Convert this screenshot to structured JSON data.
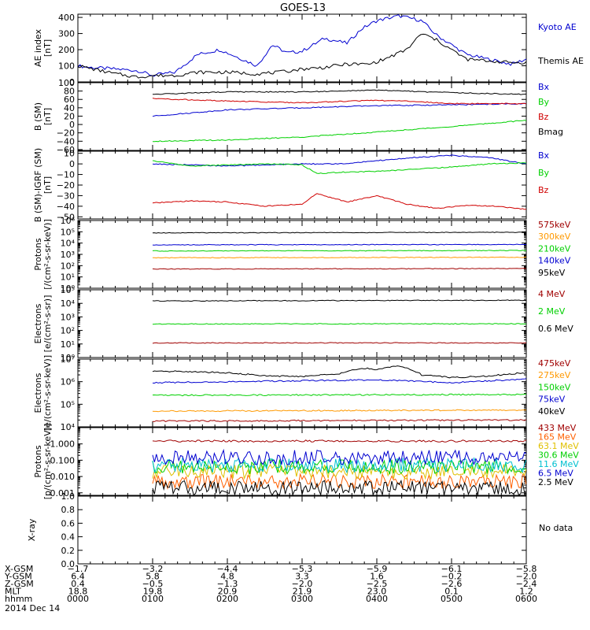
{
  "title": "GOES-13",
  "date": "2014 Dec 14",
  "no_data_text": "No data",
  "chart_data": [
    {
      "id": "ae",
      "type": "line",
      "ylabel": [
        "AE index",
        "[nT]"
      ],
      "ylim": [
        0,
        420
      ],
      "yticks": [
        0,
        100,
        200,
        300,
        400
      ],
      "log": false,
      "series": [
        {
          "name": "Kyoto AE",
          "color": "#0000d0",
          "x": [
            0,
            0.15,
            0.5,
            0.8,
            1.0,
            1.3,
            1.6,
            1.9,
            2.2,
            2.4,
            2.6,
            2.8,
            3.0,
            3.3,
            3.6,
            3.8,
            4.0,
            4.3,
            4.6,
            4.8,
            5.0,
            5.2,
            5.5,
            5.8,
            6.0
          ],
          "y": [
            100,
            90,
            80,
            70,
            40,
            60,
            170,
            200,
            140,
            100,
            230,
            180,
            190,
            270,
            240,
            330,
            380,
            410,
            380,
            290,
            230,
            170,
            140,
            110,
            140
          ]
        },
        {
          "name": "Themis AE",
          "color": "#000000",
          "x": [
            0,
            0.2,
            0.5,
            0.8,
            1.0,
            1.3,
            1.6,
            2.0,
            2.4,
            2.7,
            3.0,
            3.3,
            3.6,
            3.9,
            4.1,
            4.4,
            4.6,
            4.8,
            5.0,
            5.2,
            5.5,
            5.8,
            6.0
          ],
          "y": [
            100,
            80,
            50,
            30,
            40,
            40,
            60,
            60,
            50,
            60,
            80,
            90,
            110,
            110,
            140,
            200,
            300,
            260,
            200,
            140,
            130,
            120,
            120
          ]
        }
      ]
    },
    {
      "id": "bsm",
      "type": "line",
      "ylabel": [
        "B (SM)",
        "[nT]"
      ],
      "ylim": [
        -62,
        100
      ],
      "yticks": [
        -60,
        -40,
        -20,
        0,
        20,
        40,
        60,
        80,
        100
      ],
      "log": false,
      "series": [
        {
          "name": "Bx",
          "color": "#0000d0",
          "x": [
            1.0,
            2.0,
            3.0,
            4.0,
            5.0,
            6.0
          ],
          "y": [
            20,
            35,
            40,
            45,
            47,
            50
          ]
        },
        {
          "name": "By",
          "color": "#00d000",
          "x": [
            1.0,
            2.0,
            3.0,
            4.0,
            5.0,
            6.0
          ],
          "y": [
            -40,
            -37,
            -30,
            -18,
            -5,
            10
          ]
        },
        {
          "name": "Bz",
          "color": "#d00000",
          "x": [
            1.0,
            2.0,
            3.0,
            4.0,
            4.5,
            5.0,
            6.0
          ],
          "y": [
            62,
            56,
            52,
            58,
            55,
            50,
            50
          ]
        },
        {
          "name": "Bmag",
          "color": "#000000",
          "x": [
            1.0,
            2.0,
            3.0,
            4.0,
            5.0,
            6.0
          ],
          "y": [
            72,
            78,
            78,
            82,
            76,
            72
          ]
        }
      ]
    },
    {
      "id": "bigrf",
      "type": "line",
      "ylabel": [
        "B (SM)-IGRF (SM)",
        "[nT]"
      ],
      "ylim": [
        -52,
        12
      ],
      "yticks": [
        -50,
        -40,
        -30,
        -20,
        -10,
        0,
        10
      ],
      "log": false,
      "series": [
        {
          "name": "Bx",
          "color": "#0000d0",
          "x": [
            1.0,
            1.5,
            2.0,
            2.5,
            3.0,
            3.5,
            4.0,
            4.5,
            5.0,
            5.5,
            6.0
          ],
          "y": [
            0,
            -1,
            -2,
            -1,
            0,
            0,
            3,
            6,
            8,
            6,
            0
          ]
        },
        {
          "name": "By",
          "color": "#00d000",
          "x": [
            1.0,
            1.5,
            2.0,
            2.5,
            3.0,
            3.2,
            3.5,
            4.0,
            4.5,
            5.0,
            5.5,
            6.0
          ],
          "y": [
            3,
            -2,
            -1,
            0,
            -1,
            -9,
            -8,
            -7,
            -5,
            -3,
            0,
            1
          ]
        },
        {
          "name": "Bz",
          "color": "#d00000",
          "x": [
            1.0,
            1.5,
            2.0,
            2.5,
            3.0,
            3.2,
            3.6,
            4.0,
            4.4,
            4.8,
            5.2,
            5.6,
            6.0
          ],
          "y": [
            -37,
            -35,
            -36,
            -40,
            -38,
            -28,
            -36,
            -30,
            -38,
            -42,
            -39,
            -40,
            -43
          ]
        }
      ]
    },
    {
      "id": "protons1",
      "type": "line",
      "ylabel": [
        "Protons",
        "[/(cm²-s-sr-keV)]"
      ],
      "ylim": [
        1,
        1000000
      ],
      "ytick_labels": [
        "10⁰",
        "10¹",
        "10²",
        "10³",
        "10⁴",
        "10⁵",
        "10⁶"
      ],
      "log": true,
      "series": [
        {
          "name": "575keV",
          "color": "#a00000",
          "x": [
            1.0,
            6.0
          ],
          "y": [
            50,
            55
          ]
        },
        {
          "name": "300keV",
          "color": "#ff9900",
          "x": [
            1.0,
            6.0
          ],
          "y": [
            500,
            550
          ]
        },
        {
          "name": "210keV",
          "color": "#00d000",
          "x": [
            1.0,
            6.0
          ],
          "y": [
            2000,
            2200
          ]
        },
        {
          "name": "140keV",
          "color": "#0000d0",
          "x": [
            1.0,
            6.0
          ],
          "y": [
            7000,
            7500
          ]
        },
        {
          "name": "95keV",
          "color": "#000000",
          "x": [
            1.0,
            6.0
          ],
          "y": [
            80000,
            90000
          ]
        }
      ]
    },
    {
      "id": "electrons1",
      "type": "line",
      "ylabel": [
        "Electrons",
        "[e/(cm²-s-sr)]"
      ],
      "ylim": [
        1,
        100000
      ],
      "ytick_labels": [
        "10⁰",
        "10¹",
        "10²",
        "10³",
        "10⁴",
        "10⁵"
      ],
      "log": true,
      "series": [
        {
          "name": "4 MeV",
          "color": "#a00000",
          "x": [
            1.0,
            6.0
          ],
          "y": [
            12,
            12
          ]
        },
        {
          "name": "2 MeV",
          "color": "#00d000",
          "x": [
            1.0,
            6.0
          ],
          "y": [
            300,
            310
          ]
        },
        {
          "name": "0.6 MeV",
          "color": "#000000",
          "x": [
            1.0,
            6.0
          ],
          "y": [
            15000,
            17000
          ]
        }
      ]
    },
    {
      "id": "electrons2",
      "type": "line",
      "ylabel": [
        "Electrons",
        "[e/(cm²-s-sr-keV)]"
      ],
      "ylim": [
        10000,
        10000000
      ],
      "ytick_labels": [
        "10⁴",
        "10⁵",
        "10⁶",
        "10⁷"
      ],
      "log": true,
      "series": [
        {
          "name": "475keV",
          "color": "#a00000",
          "x": [
            1.0,
            6.0
          ],
          "y": [
            18000,
            20000
          ]
        },
        {
          "name": "275keV",
          "color": "#ff9900",
          "x": [
            1.0,
            6.0
          ],
          "y": [
            50000,
            55000
          ]
        },
        {
          "name": "150keV",
          "color": "#00d000",
          "x": [
            1.0,
            6.0
          ],
          "y": [
            250000,
            270000
          ]
        },
        {
          "name": "75keV",
          "color": "#0000d0",
          "x": [
            1.0,
            2.0,
            3.0,
            4.0,
            5.0,
            6.0
          ],
          "y": [
            900000,
            1000000,
            1100000,
            1200000,
            900000,
            1300000
          ]
        },
        {
          "name": "40keV",
          "color": "#000000",
          "x": [
            1.0,
            2.0,
            2.5,
            3.0,
            3.5,
            3.8,
            4.0,
            4.3,
            4.6,
            5.0,
            5.5,
            6.0
          ],
          "y": [
            3000000,
            2500000,
            1800000,
            1700000,
            2200000,
            4000000,
            3500000,
            5000000,
            2000000,
            1500000,
            1800000,
            2500000
          ]
        }
      ]
    },
    {
      "id": "protons2",
      "type": "line",
      "ylabel": [
        "Protons",
        "[p/(cm²-s-sr-keV)]"
      ],
      "ylim": [
        0.0007,
        10
      ],
      "ytick_values": [
        0.001,
        0.01,
        0.1,
        1
      ],
      "ytick_labels": [
        "0.001",
        "0.010",
        "0.100",
        "1.000"
      ],
      "log": true,
      "series": [
        {
          "name": "433 MeV",
          "color": "#a00000",
          "x": [
            1.0,
            6.0
          ],
          "y": [
            1.5,
            1.5
          ]
        },
        {
          "name": "165 MeV",
          "color": "#ff6000",
          "x": [
            1.0,
            6.0
          ],
          "y": [
            0.005,
            0.005
          ]
        },
        {
          "name": "63.1 MeV",
          "color": "#e0c000",
          "x": [
            1.0,
            6.0
          ],
          "y": [
            0.02,
            0.02
          ]
        },
        {
          "name": "30.6 MeV",
          "color": "#00d000",
          "x": [
            1.0,
            6.0
          ],
          "y": [
            0.04,
            0.04
          ]
        },
        {
          "name": "11.6 MeV",
          "color": "#00c0d0",
          "x": [
            1.0,
            6.0
          ],
          "y": [
            0.05,
            0.05
          ]
        },
        {
          "name": "6.5 MeV",
          "color": "#0000d0",
          "x": [
            1.0,
            6.0
          ],
          "y": [
            0.15,
            0.15
          ]
        },
        {
          "name": "2.5 MeV",
          "color": "#000000",
          "x": [
            1.0,
            6.0
          ],
          "y": [
            0.002,
            0.002
          ]
        }
      ]
    },
    {
      "id": "xray",
      "type": "line",
      "ylabel": [
        "X-ray"
      ],
      "ylim": [
        0,
        1.0
      ],
      "yticks": [
        0,
        0.2,
        0.4,
        0.6,
        0.8,
        1.0
      ],
      "ytick_labels": [
        "0.0",
        "0.2",
        "0.4",
        "0.6",
        "0.8",
        "1.0"
      ],
      "log": false,
      "series": []
    }
  ],
  "orbit_table": {
    "row_labels": [
      "X-GSM",
      "Y-GSM",
      "Z-GSM",
      "MLT",
      "hhmm"
    ],
    "columns": [
      [
        "−1.7",
        "6.4",
        "0.4",
        "18.8",
        "0000"
      ],
      [
        "−3.2",
        "5.8",
        "−0.5",
        "19.8",
        "0100"
      ],
      [
        "−4.4",
        "4.8",
        "−1.3",
        "20.9",
        "0200"
      ],
      [
        "−5.3",
        "3.3",
        "−2.0",
        "21.9",
        "0300"
      ],
      [
        "−5.9",
        "1.6",
        "−2.5",
        "23.0",
        "0400"
      ],
      [
        "−6.1",
        "−0.2",
        "−2.6",
        "0.1",
        "0500"
      ],
      [
        "−5.8",
        "−2.0",
        "−2.4",
        "1.2",
        "0600"
      ]
    ]
  }
}
